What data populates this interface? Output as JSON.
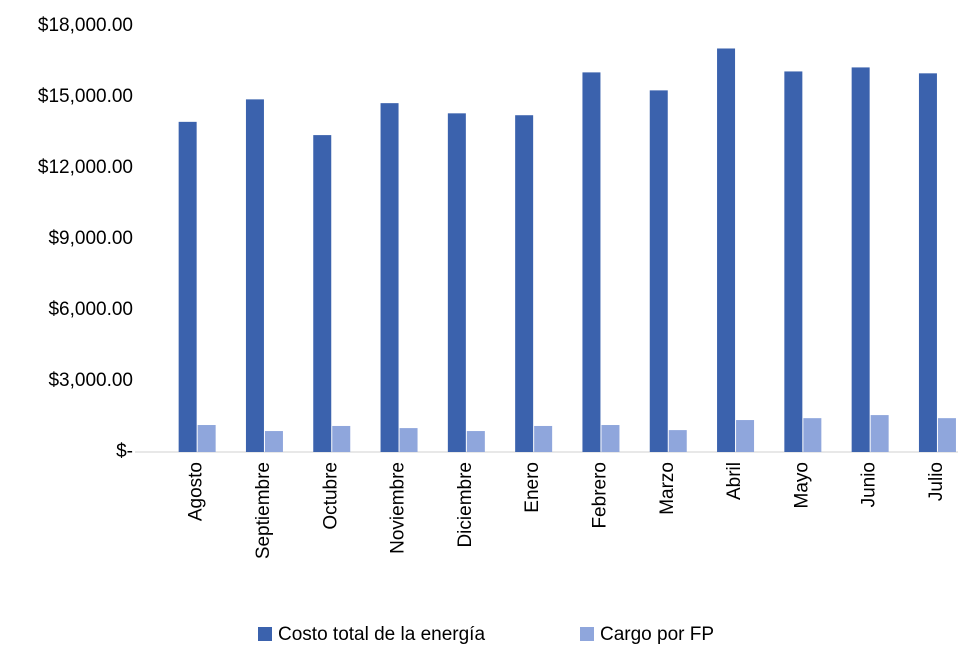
{
  "chart_data": {
    "type": "bar",
    "categories": [
      "Agosto",
      "Septiembre",
      "Octubre",
      "Noviembre",
      "Diciembre",
      "Enero",
      "Febrero",
      "Marzo",
      "Abril",
      "Mayo",
      "Junio",
      "Julio"
    ],
    "series": [
      {
        "name": "Costo total de la energía",
        "color": "#3b62ad",
        "values": [
          13950,
          14900,
          13390,
          14740,
          14310,
          14230,
          16040,
          15280,
          17050,
          16080,
          16250,
          16000
        ]
      },
      {
        "name": "Cargo por FP",
        "color": "#8fa6dc",
        "values": [
          1140,
          885,
          1100,
          1010,
          885,
          1100,
          1140,
          925,
          1350,
          1430,
          1560,
          1430
        ]
      }
    ],
    "ylim": [
      0,
      18000
    ],
    "yticks": [
      {
        "value": 0,
        "label": "$-"
      },
      {
        "value": 3000,
        "label": "$3,000.00"
      },
      {
        "value": 6000,
        "label": "$6,000.00"
      },
      {
        "value": 9000,
        "label": "$9,000.00"
      },
      {
        "value": 12000,
        "label": "$12,000.00"
      },
      {
        "value": 15000,
        "label": "$15,000.00"
      },
      {
        "value": 18000,
        "label": "$18,000.00"
      }
    ],
    "grid": false,
    "legend": "bottom"
  }
}
